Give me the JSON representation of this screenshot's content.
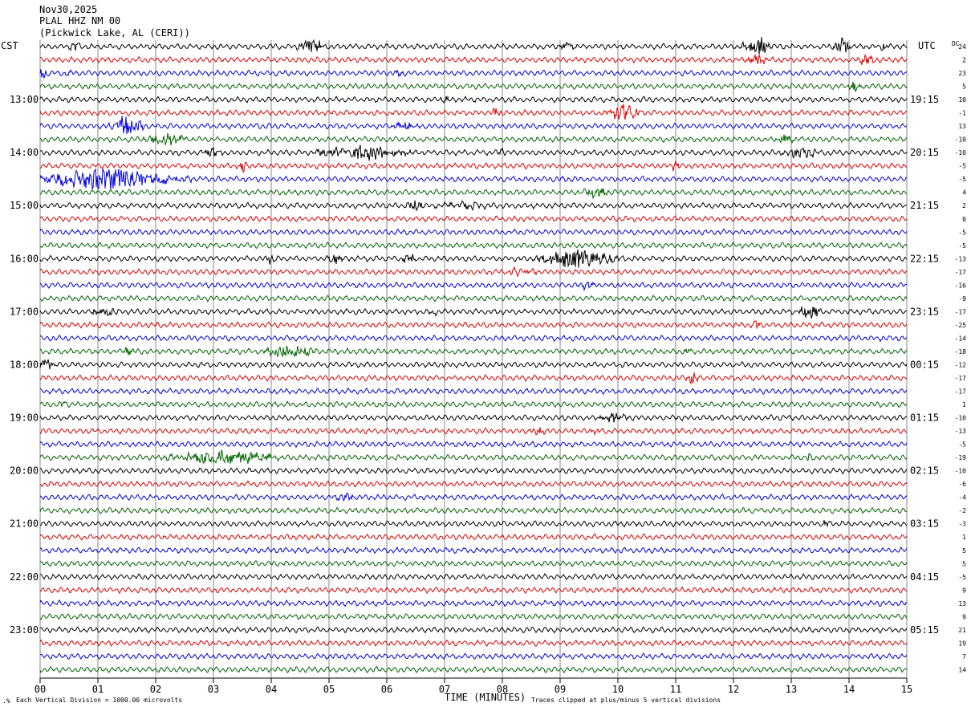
{
  "header": {
    "date": "Nov30,2025",
    "station": "PLAL HHZ NM 00",
    "location": "(Pickwick Lake, AL (CERI))"
  },
  "left_timezone": "CST",
  "right_timezone": "UTC",
  "dc_header": "DC",
  "footer": {
    "left_note": "Each Vertical Division = 1000.00 microvolts",
    "xlabel": "TIME (MINUTES)",
    "right_note": "Traces clipped at plus/minus 5 vertical divisions"
  },
  "colors": {
    "trace_cycle": [
      "#000000",
      "#dd0000",
      "#0000dd",
      "#006400"
    ],
    "grid": "#888888"
  },
  "chart_data": {
    "type": "line",
    "description_kind": "helicorder",
    "x_range_minutes": [
      0,
      15
    ],
    "x_ticks": [
      "00",
      "01",
      "02",
      "03",
      "04",
      "05",
      "06",
      "07",
      "08",
      "09",
      "10",
      "11",
      "12",
      "13",
      "14",
      "15"
    ],
    "trace_count": 48,
    "left_hour_labels": [
      "13:00",
      "14:00",
      "15:00",
      "16:00",
      "17:00",
      "18:00",
      "19:00",
      "20:00",
      "21:00",
      "22:00",
      "23:00"
    ],
    "right_hour_labels": [
      "19:15",
      "20:15",
      "21:15",
      "22:15",
      "23:15",
      "00:15",
      "01:15",
      "02:15",
      "03:15",
      "04:15",
      "05:15"
    ],
    "hour_label_first_trace": 4,
    "hour_label_every": 4,
    "dc_offsets": [
      24,
      2,
      23,
      5,
      10,
      -1,
      13,
      -10,
      -10,
      -5,
      -5,
      4,
      2,
      0,
      -5,
      -5,
      -13,
      -17,
      -16,
      -9,
      -17,
      -25,
      -14,
      -18,
      -12,
      -17,
      -17,
      1,
      -10,
      -13,
      -5,
      -19,
      -10,
      -6,
      -4,
      -2,
      -3,
      1,
      5,
      5,
      -5,
      9,
      13,
      9,
      21,
      19,
      7,
      14
    ],
    "events": [
      {
        "trace": 0,
        "minute": 0.6,
        "amp": 0.5,
        "dur": 0.15
      },
      {
        "trace": 0,
        "minute": 4.7,
        "amp": 0.9,
        "dur": 0.3
      },
      {
        "trace": 0,
        "minute": 9.1,
        "amp": 0.6,
        "dur": 0.2
      },
      {
        "trace": 0,
        "minute": 12.4,
        "amp": 1.3,
        "dur": 0.3
      },
      {
        "trace": 0,
        "minute": 13.9,
        "amp": 0.9,
        "dur": 0.2
      },
      {
        "trace": 0,
        "minute": 14.6,
        "amp": 0.5,
        "dur": 0.1
      },
      {
        "trace": 1,
        "minute": 12.4,
        "amp": 0.8,
        "dur": 0.2
      },
      {
        "trace": 1,
        "minute": 14.3,
        "amp": 0.5,
        "dur": 0.2
      },
      {
        "trace": 2,
        "minute": 0.05,
        "amp": 0.8,
        "dur": 0.1
      },
      {
        "trace": 2,
        "minute": 0.5,
        "amp": 0.5,
        "dur": 0.1
      },
      {
        "trace": 2,
        "minute": 6.2,
        "amp": 0.4,
        "dur": 0.1
      },
      {
        "trace": 3,
        "minute": 14.1,
        "amp": 0.8,
        "dur": 0.15
      },
      {
        "trace": 4,
        "minute": 7.0,
        "amp": 0.4,
        "dur": 0.1
      },
      {
        "trace": 5,
        "minute": 7.9,
        "amp": 0.7,
        "dur": 0.1
      },
      {
        "trace": 5,
        "minute": 10.1,
        "amp": 1.1,
        "dur": 0.4
      },
      {
        "trace": 6,
        "minute": 1.5,
        "amp": 1.3,
        "dur": 0.35
      },
      {
        "trace": 6,
        "minute": 6.3,
        "amp": 0.6,
        "dur": 0.3
      },
      {
        "trace": 7,
        "minute": 2.2,
        "amp": 0.6,
        "dur": 0.5
      },
      {
        "trace": 7,
        "minute": 12.9,
        "amp": 0.6,
        "dur": 0.2
      },
      {
        "trace": 8,
        "minute": 3.0,
        "amp": 0.6,
        "dur": 0.2
      },
      {
        "trace": 8,
        "minute": 5.6,
        "amp": 0.9,
        "dur": 1.0
      },
      {
        "trace": 8,
        "minute": 8.0,
        "amp": 0.5,
        "dur": 0.1
      },
      {
        "trace": 8,
        "minute": 13.2,
        "amp": 0.6,
        "dur": 0.5
      },
      {
        "trace": 9,
        "minute": 3.5,
        "amp": 0.8,
        "dur": 0.1
      },
      {
        "trace": 9,
        "minute": 11.0,
        "amp": 0.6,
        "dur": 0.1
      },
      {
        "trace": 10,
        "minute": 1.2,
        "amp": 1.4,
        "dur": 1.6
      },
      {
        "trace": 11,
        "minute": 9.6,
        "amp": 0.6,
        "dur": 0.3
      },
      {
        "trace": 12,
        "minute": 6.5,
        "amp": 0.8,
        "dur": 0.2
      },
      {
        "trace": 12,
        "minute": 7.3,
        "amp": 0.5,
        "dur": 0.5
      },
      {
        "trace": 16,
        "minute": 4.0,
        "amp": 0.7,
        "dur": 0.1
      },
      {
        "trace": 16,
        "minute": 5.1,
        "amp": 0.6,
        "dur": 0.2
      },
      {
        "trace": 16,
        "minute": 6.4,
        "amp": 0.6,
        "dur": 0.15
      },
      {
        "trace": 16,
        "minute": 9.3,
        "amp": 1.3,
        "dur": 0.8
      },
      {
        "trace": 17,
        "minute": 8.3,
        "amp": 0.4,
        "dur": 0.4
      },
      {
        "trace": 18,
        "minute": 9.5,
        "amp": 0.5,
        "dur": 0.2
      },
      {
        "trace": 20,
        "minute": 1.1,
        "amp": 0.8,
        "dur": 0.3
      },
      {
        "trace": 20,
        "minute": 6.8,
        "amp": 0.6,
        "dur": 0.1
      },
      {
        "trace": 20,
        "minute": 13.3,
        "amp": 0.9,
        "dur": 0.25
      },
      {
        "trace": 21,
        "minute": 12.4,
        "amp": 0.5,
        "dur": 0.1
      },
      {
        "trace": 23,
        "minute": 1.5,
        "amp": 0.6,
        "dur": 0.15
      },
      {
        "trace": 23,
        "minute": 4.3,
        "amp": 0.9,
        "dur": 0.5
      },
      {
        "trace": 23,
        "minute": 11.2,
        "amp": 0.5,
        "dur": 0.1
      },
      {
        "trace": 24,
        "minute": 0.1,
        "amp": 1.0,
        "dur": 0.2
      },
      {
        "trace": 25,
        "minute": 11.3,
        "amp": 0.8,
        "dur": 0.15
      },
      {
        "trace": 27,
        "minute": 0.4,
        "amp": 0.5,
        "dur": 0.1
      },
      {
        "trace": 28,
        "minute": 9.9,
        "amp": 0.9,
        "dur": 0.3
      },
      {
        "trace": 29,
        "minute": 8.6,
        "amp": 0.8,
        "dur": 0.15
      },
      {
        "trace": 29,
        "minute": 9.6,
        "amp": 0.4,
        "dur": 0.1
      },
      {
        "trace": 31,
        "minute": 3.1,
        "amp": 0.9,
        "dur": 1.2
      },
      {
        "trace": 31,
        "minute": 13.3,
        "amp": 0.4,
        "dur": 0.1
      },
      {
        "trace": 34,
        "minute": 5.3,
        "amp": 0.4,
        "dur": 0.2
      },
      {
        "trace": 36,
        "minute": 13.6,
        "amp": 0.4,
        "dur": 0.1
      }
    ]
  }
}
